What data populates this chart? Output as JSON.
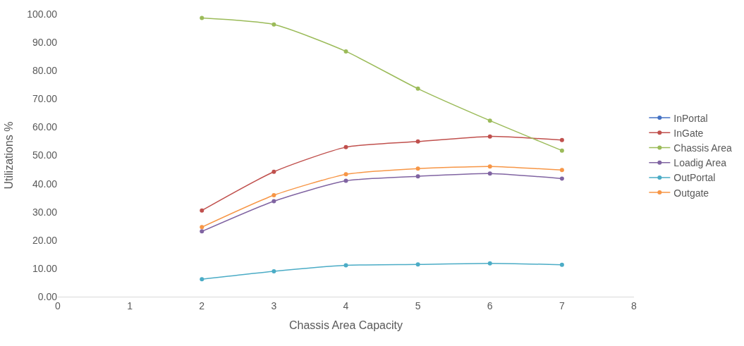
{
  "chart_data": {
    "type": "line",
    "xlabel": "Chassis Area Capacity",
    "ylabel": "Utilizations %",
    "x": [
      2,
      3,
      4,
      5,
      6,
      7
    ],
    "xlim": [
      0,
      8
    ],
    "xticks": [
      0,
      1,
      2,
      3,
      4,
      5,
      6,
      7,
      8
    ],
    "ylim": [
      0,
      100
    ],
    "yticks": [
      {
        "value": 0,
        "label": "0.00"
      },
      {
        "value": 10,
        "label": "10.00"
      },
      {
        "value": 20,
        "label": "20.00"
      },
      {
        "value": 30,
        "label": "30.00"
      },
      {
        "value": 40,
        "label": "40.00"
      },
      {
        "value": 50,
        "label": "50.00"
      },
      {
        "value": 60,
        "label": "60.00"
      },
      {
        "value": 70,
        "label": "70.00"
      },
      {
        "value": 80,
        "label": "80.00"
      },
      {
        "value": 90,
        "label": "90.00"
      },
      {
        "value": 100,
        "label": "100.00"
      }
    ],
    "grid": false,
    "legend": "right",
    "marker": "circle",
    "line_style": "solid",
    "series": [
      {
        "name": "InPortal",
        "color": "#4472c4",
        "values": [
          null,
          null,
          null,
          null,
          null,
          null
        ]
      },
      {
        "name": "InGate",
        "color": "#c0504d",
        "values": [
          30.5,
          44.2,
          52.9,
          54.9,
          56.7,
          55.4
        ]
      },
      {
        "name": "Chassis Area",
        "color": "#9bbb59",
        "values": [
          98.6,
          96.3,
          86.8,
          73.6,
          62.3,
          51.7
        ]
      },
      {
        "name": "Loadig Area",
        "color": "#8064a2",
        "values": [
          23.1,
          33.8,
          41.0,
          42.6,
          43.6,
          41.8
        ]
      },
      {
        "name": "OutPortal",
        "color": "#4bacc6",
        "values": [
          6.2,
          9.0,
          11.1,
          11.4,
          11.8,
          11.3
        ]
      },
      {
        "name": "Outgate",
        "color": "#f79646",
        "values": [
          24.6,
          35.9,
          43.3,
          45.3,
          46.1,
          44.8
        ]
      }
    ]
  }
}
